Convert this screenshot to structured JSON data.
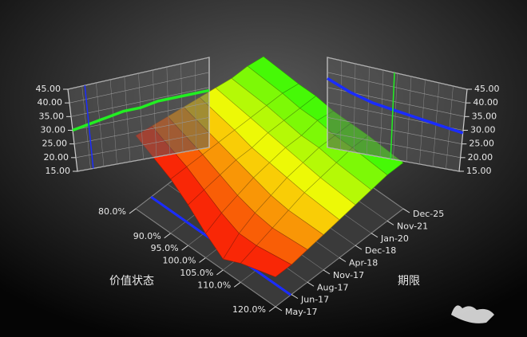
{
  "chart_data": {
    "type": "surface",
    "x_label": "价值状态",
    "y_label": "期限",
    "xticks": [
      {
        "value": 80,
        "label": "80.0%"
      },
      {
        "value": 90,
        "label": "90.0%"
      },
      {
        "value": 95,
        "label": "95.0%"
      },
      {
        "value": 100,
        "label": "100.0%"
      },
      {
        "value": 105,
        "label": "105.0%"
      },
      {
        "value": 110,
        "label": "110.0%"
      },
      {
        "value": 120,
        "label": "120.0%"
      }
    ],
    "xlim": [
      80,
      120
    ],
    "categories": [
      "May-17",
      "Jun-17",
      "Aug-17",
      "Nov-17",
      "Apr-18",
      "Dec-18",
      "Jan-20",
      "Nov-21",
      "Dec-25"
    ],
    "zlim": [
      15,
      45
    ],
    "zticks": [
      {
        "value": 15,
        "label": "15.00"
      },
      {
        "value": 20,
        "label": "20.00"
      },
      {
        "value": 25,
        "label": "25.00"
      },
      {
        "value": 30,
        "label": "30.00"
      },
      {
        "value": 35,
        "label": "35.00"
      },
      {
        "value": 40,
        "label": "40.00"
      },
      {
        "value": 45,
        "label": "45.00"
      }
    ],
    "z": [
      [
        42,
        35,
        30,
        24,
        19,
        22,
        26
      ],
      [
        41,
        35,
        31,
        27,
        24,
        24,
        26
      ],
      [
        40,
        35,
        32,
        29,
        27,
        26,
        27
      ],
      [
        39,
        35,
        33,
        31,
        29,
        28,
        28
      ],
      [
        38,
        35,
        33,
        32,
        31,
        30,
        29
      ],
      [
        37,
        35,
        34,
        33,
        32,
        31,
        30
      ],
      [
        36,
        35,
        34,
        33,
        33,
        32,
        31
      ],
      [
        36,
        35,
        34,
        34,
        33,
        33,
        32
      ],
      [
        35,
        34,
        34,
        33,
        33,
        33,
        32
      ]
    ]
  }
}
